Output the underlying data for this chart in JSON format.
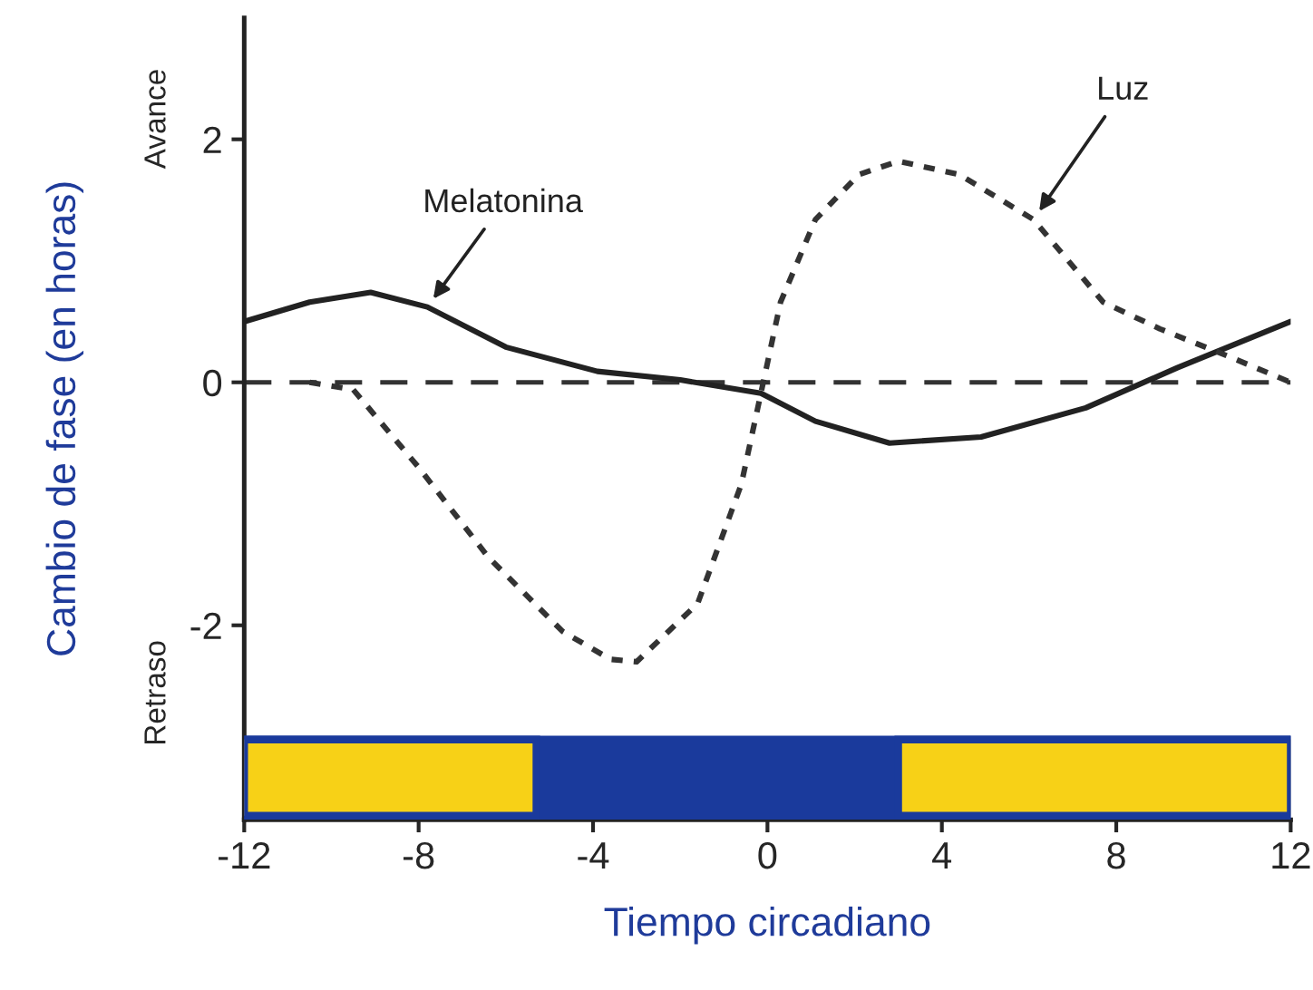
{
  "chart_data": {
    "type": "line",
    "xlabel": "Tiempo circadiano",
    "ylabel": "Cambio de fase (en horas)",
    "x": [
      -12,
      -10.5,
      -9.1,
      -7.8,
      -6,
      -3.9,
      -2,
      -0.15,
      1.1,
      2.8,
      4.9,
      7.3,
      9.4,
      12
    ],
    "series": [
      {
        "name": "Melatonina",
        "color": "#222222",
        "line_style": "solid",
        "values": [
          0.5,
          0.66,
          0.74,
          0.62,
          0.29,
          0.09,
          0.02,
          -0.09,
          -0.32,
          -0.5,
          -0.45,
          -0.21,
          0.12,
          0.5
        ]
      },
      {
        "name": "Luz",
        "color": "#333333",
        "line_style": "dotted",
        "x": [
          -10.5,
          -9.5,
          -8,
          -6.4,
          -4.7,
          -3.6,
          -3,
          -1.6,
          -0.6,
          0.3,
          1.1,
          2.1,
          3,
          4.4,
          6.1,
          7.7,
          9,
          10.6,
          12
        ],
        "values": [
          0,
          -0.06,
          -0.7,
          -1.44,
          -2.05,
          -2.28,
          -2.3,
          -1.82,
          -0.84,
          0.66,
          1.34,
          1.71,
          1.82,
          1.71,
          1.34,
          0.66,
          0.44,
          0.21,
          0
        ]
      }
    ],
    "marker": "none",
    "legend": false,
    "grid": false,
    "xlim": [
      -12,
      12
    ],
    "xticks": [
      -12,
      -8,
      -4,
      0,
      4,
      8,
      12
    ],
    "ylim": [
      -3.6,
      3
    ],
    "yticks": [
      2,
      0,
      -2
    ],
    "ref_lines": [
      {
        "axis": "y",
        "value": 0,
        "color": "#333333",
        "line_style": "dashed"
      }
    ],
    "bands": [
      {
        "axis": "x",
        "from": -12,
        "to": 12,
        "color": "#1a3a9c"
      },
      {
        "axis": "x",
        "from": -12,
        "to": -5.3,
        "color": "#f7d117"
      },
      {
        "axis": "x",
        "from": 3,
        "to": 12,
        "color": "#f7d117"
      }
    ],
    "annotations": [
      "Avance",
      "Retraso"
    ]
  }
}
